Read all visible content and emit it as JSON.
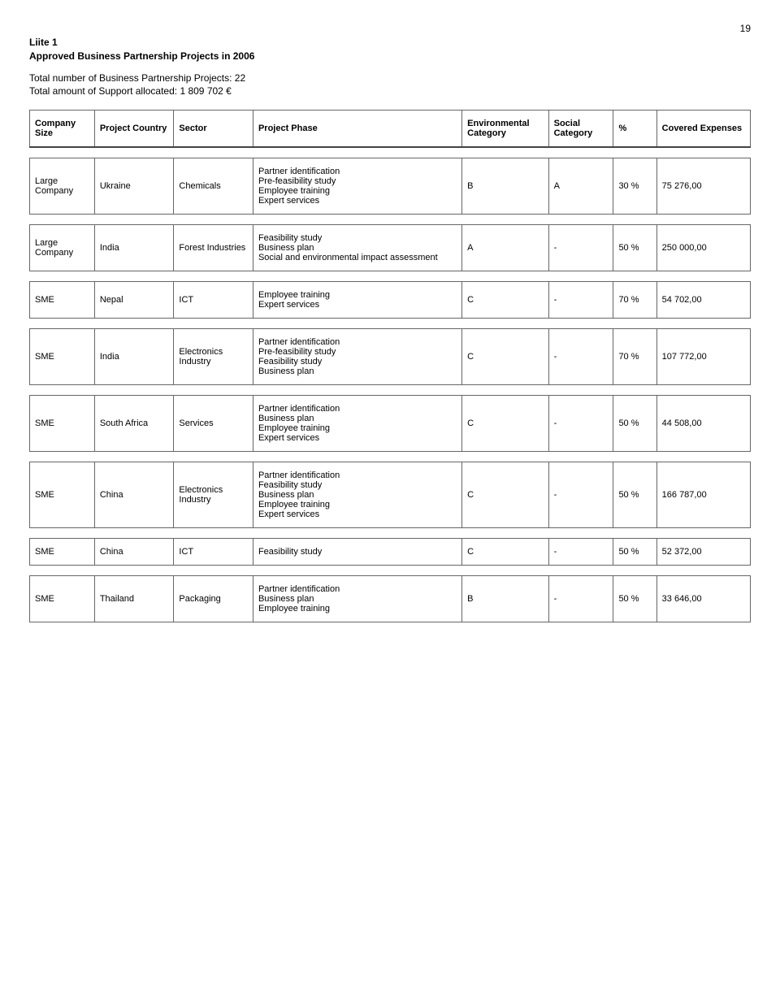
{
  "page_number": "19",
  "liite": "Liite 1",
  "title": "Approved Business Partnership Projects in 2006",
  "totals_line1": "Total number of Business Partnership Projects: 22",
  "totals_line2": "Total amount of Support allocated: 1 809 702 €",
  "columns": {
    "size": "Company Size",
    "country": "Project Country",
    "sector": "Sector",
    "phase": "Project Phase",
    "env": "Environmental Category",
    "social": "Social Category",
    "pct": "%",
    "exp": "Covered Expenses"
  },
  "rows": [
    {
      "size": "Large Company",
      "country": "Ukraine",
      "sector": "Chemicals",
      "phase": "Partner identification\nPre-feasibility study\nEmployee training\nExpert services",
      "env": "B",
      "social": "A",
      "pct": "30 %",
      "exp": "75 276,00"
    },
    {
      "size": "Large Company",
      "country": "India",
      "sector": "Forest Industries",
      "phase": "Feasibility study\nBusiness plan\nSocial and environmental impact assessment",
      "env": "A",
      "social": "-",
      "pct": "50 %",
      "exp": "250 000,00"
    },
    {
      "size": "SME",
      "country": "Nepal",
      "sector": "ICT",
      "phase": "Employee training\nExpert services",
      "env": "C",
      "social": "-",
      "pct": "70 %",
      "exp": "54 702,00"
    },
    {
      "size": "SME",
      "country": "India",
      "sector": "Electronics Industry",
      "phase": "Partner identification\nPre-feasibility study\nFeasibility study\nBusiness plan",
      "env": "C",
      "social": "-",
      "pct": "70 %",
      "exp": "107 772,00"
    },
    {
      "size": "SME",
      "country": "South Africa",
      "sector": "Services",
      "phase": "Partner identification\nBusiness plan\nEmployee training\nExpert services",
      "env": "C",
      "social": "-",
      "pct": "50 %",
      "exp": "44 508,00"
    },
    {
      "size": "SME",
      "country": "China",
      "sector": "Electronics Industry",
      "phase": "Partner identification\nFeasibility study\nBusiness plan\nEmployee training\nExpert services",
      "env": "C",
      "social": "-",
      "pct": "50 %",
      "exp": "166 787,00"
    },
    {
      "size": "SME",
      "country": "China",
      "sector": "ICT",
      "phase": "Feasibility study",
      "env": "C",
      "social": "-",
      "pct": "50 %",
      "exp": "52 372,00"
    },
    {
      "size": "SME",
      "country": "Thailand",
      "sector": "Packaging",
      "phase": "Partner identification\nBusiness plan\nEmployee training",
      "env": "B",
      "social": "-",
      "pct": "50 %",
      "exp": "33 646,00"
    }
  ]
}
